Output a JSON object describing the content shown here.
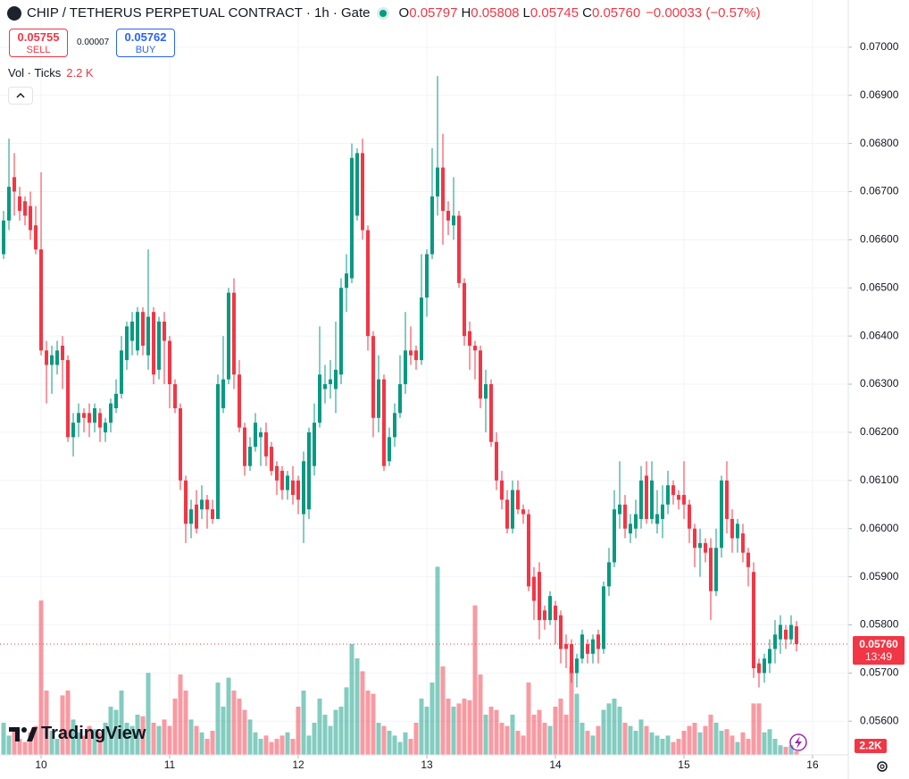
{
  "header": {
    "symbol": "CHIP / TETHERUS PERPETUAL CONTRACT · 1h · Gate",
    "ohlc": [
      {
        "key": "O",
        "value": "0.05797"
      },
      {
        "key": "H",
        "value": "0.05808"
      },
      {
        "key": "L",
        "value": "0.05745"
      },
      {
        "key": "C",
        "value": "0.05760"
      }
    ],
    "change": "−0.00033 (−0.57%)"
  },
  "trade": {
    "sell": {
      "price": "0.05755",
      "label": "SELL"
    },
    "spread": "0.00007",
    "buy": {
      "price": "0.05762",
      "label": "BUY"
    }
  },
  "indicator": {
    "name": "Vol · Ticks",
    "value": "2.2 K"
  },
  "watermark": "TradingView",
  "chart_data": {
    "type": "candlestick",
    "up_color": "#089981",
    "down_color": "#f23645",
    "grid": true,
    "xlim": [
      -7.67,
      150.67
    ],
    "xticks": [
      {
        "value": 0,
        "label": "10"
      },
      {
        "value": 24,
        "label": "11"
      },
      {
        "value": 48,
        "label": "12"
      },
      {
        "value": 72,
        "label": "13"
      },
      {
        "value": 96,
        "label": "14"
      },
      {
        "value": 120,
        "label": "15"
      },
      {
        "value": 144,
        "label": "16"
      }
    ],
    "ylim": [
      0.0553,
      0.07098
    ],
    "yticks": [
      {
        "value": 0.07,
        "label": "0.07000"
      },
      {
        "value": 0.069,
        "label": "0.06900"
      },
      {
        "value": 0.068,
        "label": "0.06800"
      },
      {
        "value": 0.067,
        "label": "0.06700"
      },
      {
        "value": 0.066,
        "label": "0.06600"
      },
      {
        "value": 0.065,
        "label": "0.06500"
      },
      {
        "value": 0.064,
        "label": "0.06400"
      },
      {
        "value": 0.063,
        "label": "0.06300"
      },
      {
        "value": 0.062,
        "label": "0.06200"
      },
      {
        "value": 0.061,
        "label": "0.06100"
      },
      {
        "value": 0.06,
        "label": "0.06000"
      },
      {
        "value": 0.059,
        "label": "0.05900"
      },
      {
        "value": 0.058,
        "label": "0.05800"
      },
      {
        "value": 0.057,
        "label": "0.05700"
      },
      {
        "value": 0.056,
        "label": "0.05600"
      }
    ],
    "vol_ylim": [
      0,
      200000
    ],
    "last_price": {
      "value": 0.0576,
      "label": "0.05760"
    },
    "countdown": "13:49",
    "volume_label": "2.2K",
    "x": [
      -7,
      -6,
      -5,
      -4,
      -3,
      -2,
      -1,
      0,
      1,
      2,
      3,
      4,
      5,
      6,
      7,
      8,
      9,
      10,
      11,
      12,
      13,
      14,
      15,
      16,
      17,
      18,
      19,
      20,
      21,
      22,
      23,
      24,
      25,
      26,
      27,
      28,
      29,
      30,
      31,
      32,
      33,
      34,
      35,
      36,
      37,
      38,
      39,
      40,
      41,
      42,
      43,
      44,
      45,
      46,
      47,
      48,
      49,
      50,
      51,
      52,
      53,
      54,
      55,
      56,
      57,
      58,
      59,
      60,
      61,
      62,
      63,
      64,
      65,
      66,
      67,
      68,
      69,
      70,
      71,
      72,
      73,
      74,
      75,
      76,
      77,
      78,
      79,
      80,
      81,
      82,
      83,
      84,
      85,
      86,
      87,
      88,
      89,
      90,
      91,
      92,
      93,
      94,
      95,
      96,
      97,
      98,
      99,
      100,
      101,
      102,
      103,
      104,
      105,
      106,
      107,
      108,
      109,
      110,
      111,
      112,
      113,
      114,
      115,
      116,
      117,
      118,
      119,
      120,
      121,
      122,
      123,
      124,
      125,
      126,
      127,
      128,
      129,
      130,
      131,
      132,
      133,
      134,
      135,
      136,
      137,
      138,
      139,
      140,
      141
    ],
    "open": [
      0.0657,
      0.0664,
      0.0673,
      0.0669,
      0.0668,
      0.0667,
      0.0663,
      0.0658,
      0.0637,
      0.0634,
      0.0634,
      0.0638,
      0.0635,
      0.0619,
      0.0622,
      0.0624,
      0.0624,
      0.0622,
      0.0624,
      0.062,
      0.0622,
      0.0625,
      0.0628,
      0.0635,
      0.0639,
      0.0637,
      0.0645,
      0.0636,
      0.0645,
      0.0633,
      0.0643,
      0.0639,
      0.063,
      0.0625,
      0.061,
      0.0601,
      0.0605,
      0.0604,
      0.0606,
      0.0604,
      0.0602,
      0.0625,
      0.0631,
      0.0649,
      0.0632,
      0.0621,
      0.0613,
      0.0617,
      0.0619,
      0.062,
      0.0617,
      0.0613,
      0.0612,
      0.0608,
      0.061,
      0.061,
      0.0603,
      0.0604,
      0.0613,
      0.0622,
      0.0629,
      0.063,
      0.0629,
      0.0632,
      0.065,
      0.0652,
      0.0665,
      0.0678,
      0.0662,
      0.064,
      0.0623,
      0.0631,
      0.0614,
      0.0619,
      0.0624,
      0.063,
      0.0637,
      0.0637,
      0.0635,
      0.0648,
      0.0657,
      0.0669,
      0.0675,
      0.0666,
      0.0663,
      0.0665,
      0.0651,
      0.0641,
      0.0638,
      0.0637,
      0.0627,
      0.063,
      0.0618,
      0.061,
      0.0606,
      0.06,
      0.0608,
      0.0604,
      0.0603,
      0.059,
      0.0591,
      0.0583,
      0.0581,
      0.0584,
      0.0582,
      0.0576,
      0.0576,
      0.057,
      0.0573,
      0.0576,
      0.0574,
      0.0578,
      0.0575,
      0.0588,
      0.0593,
      0.0603,
      0.0605,
      0.0599,
      0.06,
      0.0602,
      0.0611,
      0.0602,
      0.0601,
      0.0602,
      0.0605,
      0.0609,
      0.0607,
      0.0607,
      0.0605,
      0.06,
      0.0596,
      0.0597,
      0.0596,
      0.0587,
      0.0596,
      0.061,
      0.0602,
      0.0598,
      0.0599,
      0.0595,
      0.0591,
      0.0572,
      0.057,
      0.0572,
      0.0575,
      0.0577,
      0.0579,
      0.0577,
      0.05797
    ],
    "high": [
      0.0666,
      0.0681,
      0.0678,
      0.0671,
      0.0669,
      0.067,
      0.0667,
      0.0674,
      0.0639,
      0.0638,
      0.0639,
      0.064,
      0.0636,
      0.0624,
      0.0626,
      0.0625,
      0.0626,
      0.0626,
      0.0625,
      0.0623,
      0.0627,
      0.0631,
      0.064,
      0.0643,
      0.0645,
      0.0646,
      0.0646,
      0.0658,
      0.0646,
      0.0644,
      0.0645,
      0.064,
      0.0631,
      0.0626,
      0.0611,
      0.0606,
      0.0608,
      0.0609,
      0.0607,
      0.0606,
      0.0632,
      0.064,
      0.065,
      0.0652,
      0.0635,
      0.0622,
      0.0619,
      0.0624,
      0.0621,
      0.0622,
      0.0618,
      0.0614,
      0.0613,
      0.0612,
      0.0613,
      0.0611,
      0.0616,
      0.0621,
      0.0626,
      0.0642,
      0.0634,
      0.0635,
      0.0643,
      0.0652,
      0.0657,
      0.068,
      0.0679,
      0.0681,
      0.0663,
      0.0641,
      0.0636,
      0.0632,
      0.0621,
      0.0626,
      0.0636,
      0.0645,
      0.0642,
      0.0638,
      0.0657,
      0.0658,
      0.0679,
      0.0694,
      0.0682,
      0.0668,
      0.0673,
      0.0666,
      0.0652,
      0.0643,
      0.0639,
      0.0638,
      0.0633,
      0.0631,
      0.062,
      0.0612,
      0.0608,
      0.061,
      0.061,
      0.0605,
      0.0604,
      0.0592,
      0.0593,
      0.0584,
      0.0587,
      0.0585,
      0.0583,
      0.0578,
      0.0577,
      0.0574,
      0.0579,
      0.0577,
      0.0578,
      0.0579,
      0.0589,
      0.0596,
      0.0608,
      0.0614,
      0.0607,
      0.0603,
      0.0606,
      0.0613,
      0.0614,
      0.0614,
      0.0608,
      0.0609,
      0.0612,
      0.061,
      0.0608,
      0.0614,
      0.0606,
      0.0601,
      0.06,
      0.0598,
      0.0598,
      0.06,
      0.0611,
      0.0614,
      0.0604,
      0.0602,
      0.0601,
      0.0596,
      0.0593,
      0.0573,
      0.0574,
      0.0577,
      0.0581,
      0.0582,
      0.058,
      0.0582,
      0.05808
    ],
    "low": [
      0.0656,
      0.0662,
      0.0665,
      0.0664,
      0.0663,
      0.066,
      0.0657,
      0.0636,
      0.0626,
      0.0628,
      0.0632,
      0.0629,
      0.0618,
      0.0615,
      0.0619,
      0.062,
      0.0619,
      0.062,
      0.0618,
      0.0618,
      0.062,
      0.0624,
      0.0627,
      0.0633,
      0.0636,
      0.0636,
      0.0636,
      0.0633,
      0.063,
      0.0631,
      0.063,
      0.0625,
      0.0624,
      0.0608,
      0.0597,
      0.0598,
      0.0599,
      0.0602,
      0.06,
      0.0601,
      0.0602,
      0.0624,
      0.063,
      0.0629,
      0.062,
      0.0611,
      0.0612,
      0.0616,
      0.0613,
      0.0613,
      0.0611,
      0.0607,
      0.0606,
      0.0606,
      0.0605,
      0.0603,
      0.0597,
      0.0602,
      0.0611,
      0.0621,
      0.0626,
      0.0627,
      0.0624,
      0.063,
      0.0645,
      0.0651,
      0.0664,
      0.066,
      0.0637,
      0.0619,
      0.062,
      0.0612,
      0.0613,
      0.0617,
      0.0623,
      0.0628,
      0.0634,
      0.0633,
      0.0634,
      0.0644,
      0.0656,
      0.0665,
      0.0659,
      0.0661,
      0.066,
      0.065,
      0.0638,
      0.0633,
      0.0631,
      0.0625,
      0.062,
      0.0617,
      0.0608,
      0.0604,
      0.0599,
      0.0599,
      0.0603,
      0.0601,
      0.0587,
      0.0581,
      0.0577,
      0.0579,
      0.058,
      0.0576,
      0.0572,
      0.0571,
      0.0568,
      0.0567,
      0.0572,
      0.0572,
      0.0572,
      0.0572,
      0.0574,
      0.0586,
      0.0592,
      0.06,
      0.0598,
      0.0597,
      0.0598,
      0.06,
      0.0601,
      0.0601,
      0.0599,
      0.0598,
      0.0603,
      0.0605,
      0.0604,
      0.0602,
      0.0597,
      0.0592,
      0.059,
      0.0593,
      0.0581,
      0.0586,
      0.0594,
      0.0599,
      0.0595,
      0.0595,
      0.0593,
      0.0588,
      0.0569,
      0.0567,
      0.0568,
      0.057,
      0.0572,
      0.0574,
      0.0575,
      0.0576,
      0.05745
    ],
    "close": [
      0.0664,
      0.0671,
      0.067,
      0.0666,
      0.0665,
      0.0662,
      0.0658,
      0.0637,
      0.0634,
      0.0636,
      0.0637,
      0.0635,
      0.0619,
      0.0622,
      0.0624,
      0.0623,
      0.0622,
      0.0625,
      0.0621,
      0.0622,
      0.0626,
      0.0628,
      0.0637,
      0.0642,
      0.0643,
      0.0645,
      0.0638,
      0.0644,
      0.0632,
      0.0643,
      0.0639,
      0.063,
      0.0625,
      0.061,
      0.0601,
      0.0604,
      0.06,
      0.0606,
      0.0604,
      0.0602,
      0.063,
      0.0631,
      0.0649,
      0.0632,
      0.0621,
      0.0613,
      0.0617,
      0.0622,
      0.062,
      0.0615,
      0.0612,
      0.061,
      0.0608,
      0.0611,
      0.0607,
      0.0606,
      0.0614,
      0.062,
      0.0622,
      0.0632,
      0.063,
      0.0631,
      0.0633,
      0.065,
      0.0653,
      0.0677,
      0.0678,
      0.0662,
      0.064,
      0.0623,
      0.0631,
      0.0613,
      0.0619,
      0.0624,
      0.063,
      0.0637,
      0.0636,
      0.0635,
      0.0648,
      0.0657,
      0.0669,
      0.0675,
      0.0666,
      0.0664,
      0.0665,
      0.0651,
      0.064,
      0.0638,
      0.0637,
      0.0627,
      0.063,
      0.0618,
      0.061,
      0.0606,
      0.06,
      0.0608,
      0.0604,
      0.0603,
      0.0588,
      0.0585,
      0.0581,
      0.0581,
      0.0586,
      0.0581,
      0.0575,
      0.0575,
      0.057,
      0.0573,
      0.0578,
      0.0574,
      0.0577,
      0.0575,
      0.0588,
      0.0593,
      0.0604,
      0.0605,
      0.06,
      0.0601,
      0.0603,
      0.061,
      0.0602,
      0.061,
      0.0603,
      0.0605,
      0.0609,
      0.0607,
      0.0606,
      0.0605,
      0.06,
      0.0596,
      0.0597,
      0.0595,
      0.0587,
      0.0596,
      0.061,
      0.0602,
      0.0598,
      0.0601,
      0.0595,
      0.0592,
      0.0571,
      0.057,
      0.0573,
      0.0575,
      0.0578,
      0.058,
      0.0577,
      0.058,
      0.0576
    ],
    "volume": [
      20000,
      12000,
      15000,
      10000,
      8000,
      14000,
      18000,
      96000,
      40000,
      15000,
      10000,
      37000,
      40000,
      22000,
      14000,
      12000,
      18000,
      16000,
      14000,
      20000,
      30000,
      28000,
      40000,
      20000,
      18000,
      25000,
      24000,
      51000,
      20000,
      18000,
      22000,
      18000,
      35000,
      50000,
      40000,
      22000,
      18000,
      14000,
      10000,
      15000,
      45000,
      30000,
      48000,
      40000,
      35000,
      28000,
      22000,
      14000,
      10000,
      12000,
      8000,
      10000,
      12000,
      14000,
      10000,
      30000,
      40000,
      12000,
      20000,
      35000,
      25000,
      18000,
      28000,
      30000,
      42000,
      69000,
      60000,
      52000,
      40000,
      38000,
      20000,
      18000,
      15000,
      12000,
      8000,
      14000,
      10000,
      20000,
      35000,
      30000,
      45000,
      117000,
      55000,
      35000,
      30000,
      32000,
      35000,
      34000,
      93000,
      50000,
      25000,
      30000,
      28000,
      20000,
      18000,
      25000,
      15000,
      12000,
      45000,
      25000,
      28000,
      20000,
      18000,
      30000,
      35000,
      25000,
      55000,
      38000,
      20000,
      15000,
      12000,
      18000,
      28000,
      32000,
      35000,
      30000,
      20000,
      18000,
      15000,
      22000,
      18000,
      14000,
      12000,
      10000,
      12000,
      8000,
      10000,
      15000,
      18000,
      20000,
      14000,
      18000,
      25000,
      20000,
      15000,
      16000,
      12000,
      8000,
      14000,
      10000,
      32000,
      32000,
      14000,
      16000,
      10000,
      6000,
      5000,
      6000,
      2200
    ]
  }
}
